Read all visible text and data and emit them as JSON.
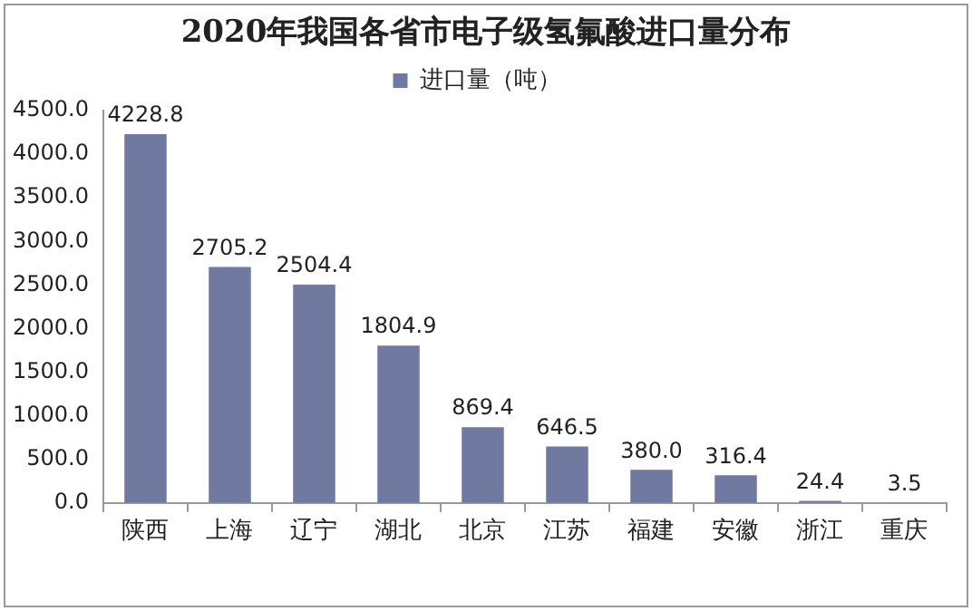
{
  "chart_data": {
    "type": "bar",
    "title": "2020年我国各省市电子级氢氟酸进口量分布",
    "categories": [
      "陕西",
      "上海",
      "辽宁",
      "湖北",
      "北京",
      "江苏",
      "福建",
      "安徽",
      "浙江",
      "重庆"
    ],
    "series": [
      {
        "name": "进口量（吨）",
        "color": "#7079a0",
        "values": [
          4228.8,
          2705.2,
          2504.4,
          1804.9,
          869.4,
          646.5,
          380.0,
          316.4,
          24.4,
          3.5
        ],
        "value_labels": [
          "4228.8",
          "2705.2",
          "2504.4",
          "1804.9",
          "869.4",
          "646.5",
          "380.0",
          "316.4",
          "24.4",
          "3.5"
        ]
      }
    ],
    "ylim": [
      0,
      4500
    ],
    "yticks": [
      {
        "value": 0,
        "label": "0.0"
      },
      {
        "value": 500,
        "label": "500.0"
      },
      {
        "value": 1000,
        "label": "1000.0"
      },
      {
        "value": 1500,
        "label": "1500.0"
      },
      {
        "value": 2000,
        "label": "2000.0"
      },
      {
        "value": 2500,
        "label": "2500.0"
      },
      {
        "value": 3000,
        "label": "3000.0"
      },
      {
        "value": 3500,
        "label": "3500.0"
      },
      {
        "value": 4000,
        "label": "4000.0"
      },
      {
        "value": 4500,
        "label": "4500.0"
      }
    ],
    "grid": false,
    "legend": "top"
  }
}
